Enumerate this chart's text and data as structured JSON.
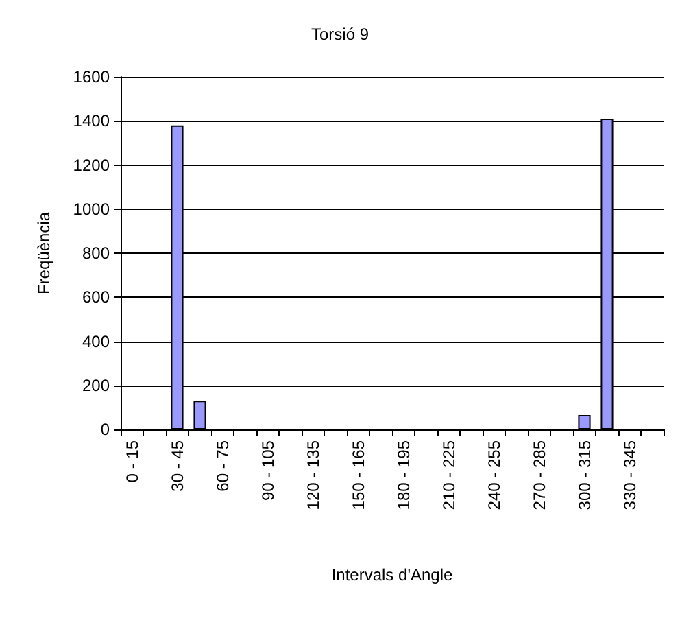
{
  "chart_data": {
    "type": "bar",
    "title": "Torsió 9",
    "xlabel": "Intervals d'Angle",
    "ylabel": "Freqüència",
    "categories": [
      "0 - 15",
      null,
      "30 - 45",
      null,
      "60 - 75",
      null,
      "90 - 105",
      null,
      "120 - 135",
      null,
      "150 - 165",
      null,
      "180 - 195",
      null,
      "210 - 225",
      null,
      "240 - 255",
      null,
      "270 - 285",
      null,
      "300 - 315",
      null,
      "330 - 345",
      null
    ],
    "values": [
      0,
      0,
      1380,
      130,
      0,
      0,
      0,
      0,
      0,
      0,
      0,
      0,
      0,
      0,
      0,
      0,
      0,
      0,
      0,
      0,
      65,
      1410,
      0,
      0
    ],
    "color": "#9999ff",
    "ylim": [
      0,
      1600
    ],
    "yticks": [
      0,
      200,
      400,
      600,
      800,
      1000,
      1200,
      1400,
      1600
    ],
    "grid": "y"
  }
}
